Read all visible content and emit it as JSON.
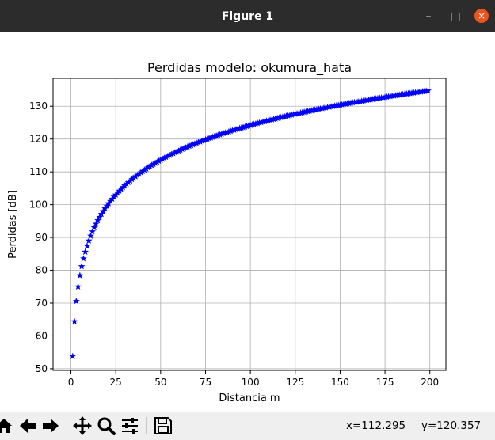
{
  "window": {
    "title": "Figure 1",
    "buttons": {
      "minimize": "–",
      "maximize": "□",
      "close": "×"
    }
  },
  "chart_data": {
    "type": "scatter",
    "title": "Perdidas modelo: okumura_hata",
    "xlabel": "Distancia m",
    "ylabel": "Perdidas [dB]",
    "xlim": [
      -9.95,
      208.95
    ],
    "ylim": [
      49.5,
      138.5
    ],
    "xticks": [
      0,
      25,
      50,
      75,
      100,
      125,
      150,
      175,
      200
    ],
    "yticks": [
      50,
      60,
      70,
      80,
      90,
      100,
      110,
      120,
      130
    ],
    "grid": true,
    "marker": "star",
    "color": "#0000ff",
    "series": [
      {
        "x_start": 1,
        "x_end": 199,
        "x_step": 1,
        "model": "y = 53.8 + 35.2 * log10(x)",
        "sample_points": [
          [
            1,
            53.8
          ],
          [
            2,
            64.4
          ],
          [
            3,
            70.6
          ],
          [
            5,
            78.4
          ],
          [
            10,
            89.0
          ],
          [
            25,
            103.0
          ],
          [
            50,
            113.6
          ],
          [
            75,
            119.8
          ],
          [
            100,
            124.2
          ],
          [
            125,
            127.6
          ],
          [
            150,
            130.4
          ],
          [
            175,
            132.8
          ],
          [
            199,
            134.7
          ]
        ]
      }
    ]
  },
  "toolbar": {
    "icons": [
      "home-icon",
      "back-arrow-icon",
      "forward-arrow-icon",
      "pan-icon",
      "zoom-icon",
      "configure-subplots-icon",
      "save-icon"
    ],
    "x_readout": "x=112.295",
    "y_readout": "y=120.357"
  }
}
